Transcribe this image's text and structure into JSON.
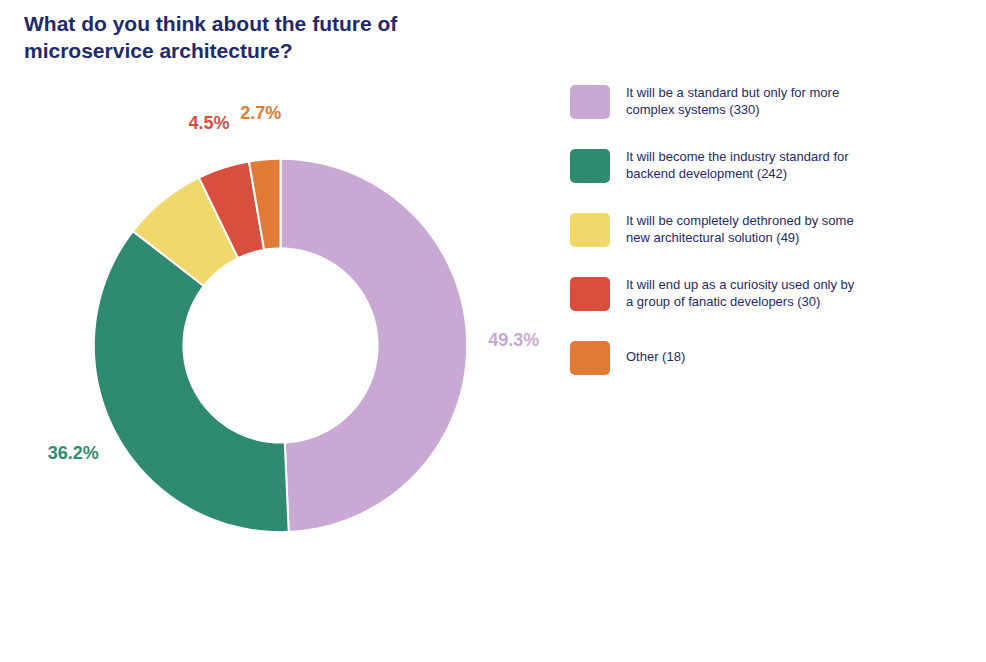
{
  "chart_data": {
    "type": "donut",
    "title": "What do you think about the future of\nmicroservice architecture?",
    "categories": [
      "It will be a standard but only for more\ncomplex systems (330)",
      "It will become the industry standard for\nbackend development (242)",
      "It will be completely dethroned by some\nnew architectural solution (49)",
      "It will end up as a curiosity used only by\na group of fanatic developers (30)",
      "Other (18)"
    ],
    "values": [
      49.3,
      36.2,
      7.3,
      4.5,
      2.7
    ],
    "colors": [
      "#c9a8d4",
      "#2e8b72",
      "#f0d96a",
      "#d94f3d",
      "#e07a35"
    ],
    "value_labels": [
      "49.3%",
      "36.2%",
      null,
      "4.5%",
      "2.7%"
    ],
    "legend": "right"
  }
}
